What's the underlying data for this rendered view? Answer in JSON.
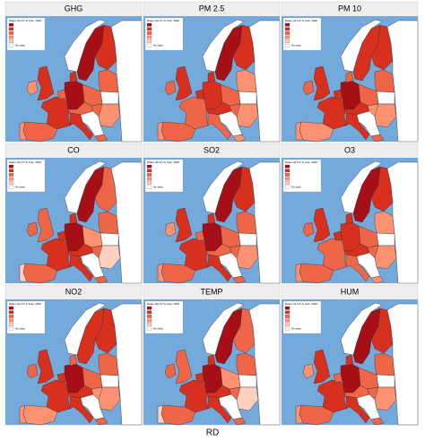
{
  "panels": [
    {
      "title": "GHG"
    },
    {
      "title": "PM 2.5"
    },
    {
      "title": "PM 10"
    },
    {
      "title": "CO"
    },
    {
      "title": "SO2"
    },
    {
      "title": "O3"
    },
    {
      "title": "NO2"
    },
    {
      "title": "TEMP"
    },
    {
      "title": "HUM"
    }
  ],
  "legend": {
    "title": "Rates: EU-27 & Year: 2020",
    "no_data": "No data"
  },
  "footer": "RD"
}
